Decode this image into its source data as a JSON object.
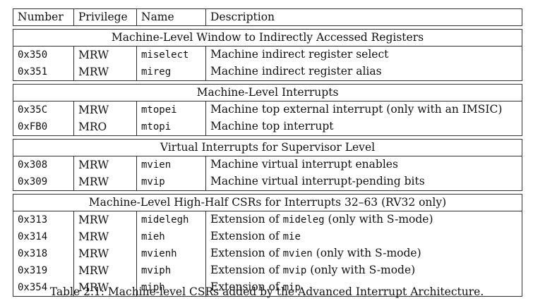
{
  "columns": [
    "Number",
    "Privilege",
    "Name",
    "Description"
  ],
  "sections": [
    {
      "title": "Machine-Level Window to Indirectly Accessed Registers",
      "rows": [
        {
          "number": "0x350",
          "privilege": "MRW",
          "name": "miselect",
          "desc_pre": "Machine indirect register select",
          "desc_code": "",
          "desc_post": ""
        },
        {
          "number": "0x351",
          "privilege": "MRW",
          "name": "mireg",
          "desc_pre": "Machine indirect register alias",
          "desc_code": "",
          "desc_post": ""
        }
      ]
    },
    {
      "title": "Machine-Level Interrupts",
      "rows": [
        {
          "number": "0x35C",
          "privilege": "MRW",
          "name": "mtopei",
          "desc_pre": "Machine top external interrupt (only with an IMSIC)",
          "desc_code": "",
          "desc_post": ""
        },
        {
          "number": "0xFB0",
          "privilege": "MRO",
          "name": "mtopi",
          "desc_pre": "Machine top interrupt",
          "desc_code": "",
          "desc_post": ""
        }
      ]
    },
    {
      "title": "Virtual Interrupts for Supervisor Level",
      "rows": [
        {
          "number": "0x308",
          "privilege": "MRW",
          "name": "mvien",
          "desc_pre": "Machine virtual interrupt enables",
          "desc_code": "",
          "desc_post": ""
        },
        {
          "number": "0x309",
          "privilege": "MRW",
          "name": "mvip",
          "desc_pre": "Machine virtual interrupt-pending bits",
          "desc_code": "",
          "desc_post": ""
        }
      ]
    },
    {
      "title": "Machine-Level High-Half CSRs for Interrupts 32–63 (RV32 only)",
      "rows": [
        {
          "number": "0x313",
          "privilege": "MRW",
          "name": "midelegh",
          "desc_pre": "Extension of ",
          "desc_code": "mideleg",
          "desc_post": " (only with S-mode)"
        },
        {
          "number": "0x314",
          "privilege": "MRW",
          "name": "mieh",
          "desc_pre": "Extension of ",
          "desc_code": "mie",
          "desc_post": ""
        },
        {
          "number": "0x318",
          "privilege": "MRW",
          "name": "mvienh",
          "desc_pre": "Extension of ",
          "desc_code": "mvien",
          "desc_post": " (only with S-mode)"
        },
        {
          "number": "0x319",
          "privilege": "MRW",
          "name": "mviph",
          "desc_pre": "Extension of ",
          "desc_code": "mvip",
          "desc_post": " (only with S-mode)"
        },
        {
          "number": "0x354",
          "privilege": "MRW",
          "name": "miph",
          "desc_pre": "Extension of ",
          "desc_code": "mip",
          "desc_post": ""
        }
      ]
    }
  ],
  "caption": "Table 2.1: Machine-level CSRs added by the Advanced Interrupt Architecture."
}
